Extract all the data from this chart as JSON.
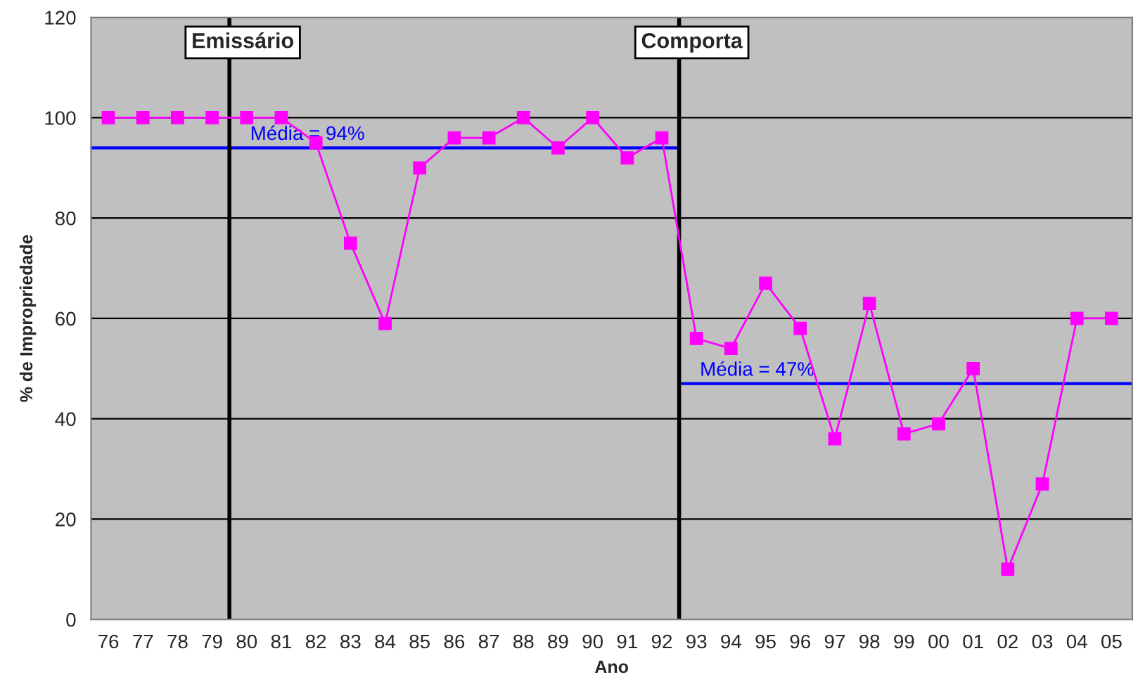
{
  "chart_data": {
    "type": "line",
    "xlabel": "Ano",
    "ylabel": "% de Impropriedade",
    "x": [
      1976,
      1977,
      1978,
      1979,
      1980,
      1981,
      1982,
      1983,
      1984,
      1985,
      1986,
      1987,
      1988,
      1989,
      1990,
      1991,
      1992,
      1993,
      1994,
      1995,
      1996,
      1997,
      1998,
      1999,
      2000,
      2001,
      2002,
      2003,
      2004,
      2005
    ],
    "series": [
      {
        "color": "#ff00ff",
        "marker": "square",
        "values": [
          100,
          100,
          100,
          100,
          100,
          100,
          95,
          75,
          59,
          90,
          96,
          96,
          100,
          94,
          100,
          92,
          96,
          56,
          54,
          67,
          58,
          36,
          63,
          37,
          39,
          50,
          10,
          27,
          60,
          60
        ]
      },
      {
        "name": "Média = 94%",
        "color": "#0000ff",
        "marker": "none",
        "x": [
          1975.5,
          1992.5
        ],
        "values": [
          94,
          94
        ]
      },
      {
        "name": "Média = 47%",
        "color": "#0000ff",
        "marker": "none",
        "x": [
          1992.5,
          2005.6
        ],
        "values": [
          47,
          47
        ]
      }
    ],
    "xlim": [
      1975.5,
      2005.6
    ],
    "xticks": [
      {
        "value": 1976,
        "label": "76"
      },
      {
        "value": 1977,
        "label": "77"
      },
      {
        "value": 1978,
        "label": "78"
      },
      {
        "value": 1979,
        "label": "79"
      },
      {
        "value": 1980,
        "label": "80"
      },
      {
        "value": 1981,
        "label": "81"
      },
      {
        "value": 1982,
        "label": "82"
      },
      {
        "value": 1983,
        "label": "83"
      },
      {
        "value": 1984,
        "label": "84"
      },
      {
        "value": 1985,
        "label": "85"
      },
      {
        "value": 1986,
        "label": "86"
      },
      {
        "value": 1987,
        "label": "87"
      },
      {
        "value": 1988,
        "label": "88"
      },
      {
        "value": 1989,
        "label": "89"
      },
      {
        "value": 1990,
        "label": "90"
      },
      {
        "value": 1991,
        "label": "91"
      },
      {
        "value": 1992,
        "label": "92"
      },
      {
        "value": 1993,
        "label": "93"
      },
      {
        "value": 1994,
        "label": "94"
      },
      {
        "value": 1995,
        "label": "95"
      },
      {
        "value": 1996,
        "label": "96"
      },
      {
        "value": 1997,
        "label": "97"
      },
      {
        "value": 1998,
        "label": "98"
      },
      {
        "value": 1999,
        "label": "99"
      },
      {
        "value": 2000,
        "label": "00"
      },
      {
        "value": 2001,
        "label": "01"
      },
      {
        "value": 2002,
        "label": "02"
      },
      {
        "value": 2003,
        "label": "03"
      },
      {
        "value": 2004,
        "label": "04"
      },
      {
        "value": 2005,
        "label": "05"
      }
    ],
    "ylim": [
      0,
      120
    ],
    "yticks": [
      0,
      20,
      40,
      60,
      80,
      100,
      120
    ],
    "ref_lines": [
      {
        "axis": "x",
        "value": 1979.5,
        "label": "Emissário",
        "color": "#000000"
      },
      {
        "axis": "x",
        "value": 1992.5,
        "label": "Comporta",
        "color": "#000000"
      }
    ],
    "grid": "y",
    "legend": false,
    "line_style": "solid"
  }
}
